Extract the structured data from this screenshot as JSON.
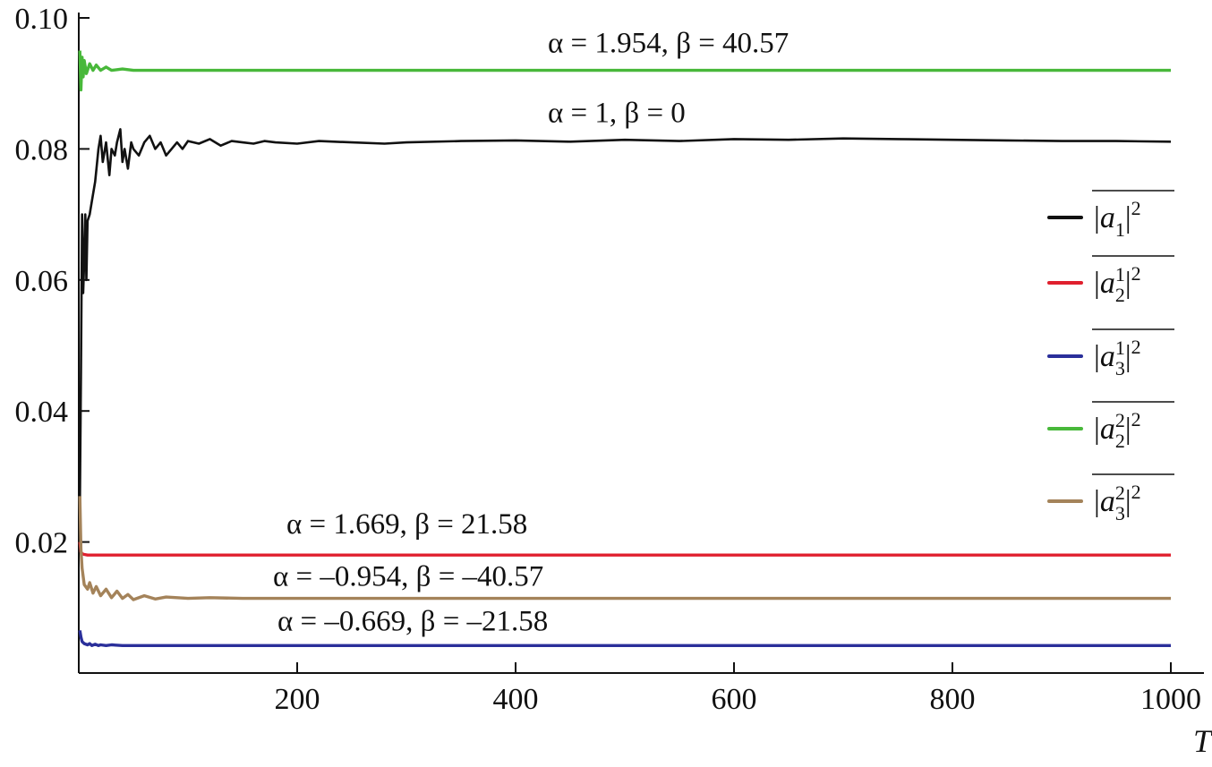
{
  "chart_data": {
    "type": "line",
    "title": "",
    "xlabel": "T",
    "ylabel": "",
    "xlim": [
      0,
      1020
    ],
    "ylim": [
      0,
      0.1
    ],
    "x_ticks": [
      200,
      400,
      600,
      800,
      1000
    ],
    "x_tick_labels": [
      "200",
      "400",
      "600",
      "800",
      "1000"
    ],
    "y_ticks": [
      0.02,
      0.04,
      0.06,
      0.08,
      0.1
    ],
    "y_tick_labels": [
      "0.02",
      "0.04",
      "0.06",
      "0.08",
      "0.10"
    ],
    "grid": false,
    "legend_position": "right",
    "series": [
      {
        "name": "|a1|^2",
        "legend_base": "|a",
        "legend_sub": "1",
        "legend_sup_inner": "",
        "legend_sup": "2",
        "color": "#111111",
        "annotation": "α = 1, β = 0",
        "x": [
          1,
          2,
          3,
          4,
          5,
          6,
          7,
          8,
          10,
          12,
          15,
          18,
          20,
          22,
          25,
          28,
          30,
          33,
          35,
          38,
          40,
          42,
          45,
          48,
          50,
          55,
          60,
          65,
          70,
          75,
          80,
          85,
          90,
          95,
          100,
          110,
          120,
          130,
          140,
          150,
          160,
          170,
          180,
          200,
          220,
          250,
          280,
          300,
          350,
          400,
          450,
          500,
          550,
          600,
          650,
          700,
          750,
          800,
          850,
          900,
          950,
          1000
        ],
        "y": [
          0.025,
          0.045,
          0.07,
          0.058,
          0.063,
          0.07,
          0.06,
          0.069,
          0.07,
          0.072,
          0.075,
          0.08,
          0.082,
          0.078,
          0.081,
          0.076,
          0.08,
          0.079,
          0.081,
          0.083,
          0.078,
          0.08,
          0.077,
          0.081,
          0.08,
          0.079,
          0.081,
          0.082,
          0.08,
          0.081,
          0.079,
          0.08,
          0.081,
          0.08,
          0.0812,
          0.0808,
          0.0815,
          0.0805,
          0.0812,
          0.081,
          0.0808,
          0.0812,
          0.081,
          0.0808,
          0.0812,
          0.081,
          0.0808,
          0.081,
          0.0812,
          0.0813,
          0.0811,
          0.0814,
          0.0812,
          0.0815,
          0.0814,
          0.0816,
          0.0815,
          0.0814,
          0.0813,
          0.0812,
          0.0812,
          0.0811
        ]
      },
      {
        "name": "|a2^1|^2",
        "legend_base": "|a",
        "legend_sub": "2",
        "legend_sup_inner": "1",
        "legend_sup": "2",
        "color": "#e0202e",
        "annotation": "α = 1.669, β = 21.58",
        "x": [
          1,
          2,
          3,
          5,
          8,
          12,
          20,
          50,
          100,
          200,
          400,
          600,
          800,
          1000
        ],
        "y": [
          0.02,
          0.0185,
          0.0182,
          0.0181,
          0.018,
          0.018,
          0.018,
          0.018,
          0.018,
          0.018,
          0.018,
          0.018,
          0.018,
          0.018
        ]
      },
      {
        "name": "|a3^1|^2",
        "legend_base": "|a",
        "legend_sub": "3",
        "legend_sup_inner": "1",
        "legend_sup": "2",
        "color": "#2a2f9a",
        "annotation": "α = –0.669, β = –21.58",
        "x": [
          1,
          2,
          3,
          5,
          8,
          10,
          12,
          15,
          18,
          20,
          25,
          30,
          40,
          50,
          70,
          100,
          200,
          400,
          600,
          800,
          1000
        ],
        "y": [
          0.0065,
          0.0055,
          0.0048,
          0.0045,
          0.0043,
          0.0045,
          0.0042,
          0.0044,
          0.0042,
          0.0043,
          0.0042,
          0.0043,
          0.0042,
          0.0042,
          0.0042,
          0.0042,
          0.0042,
          0.0042,
          0.0042,
          0.0042,
          0.0042
        ]
      },
      {
        "name": "|a2^2|^2",
        "legend_base": "|a",
        "legend_sub": "2",
        "legend_sup_inner": "2",
        "legend_sup": "2",
        "color": "#48b83a",
        "annotation": "α = 1.954, β = 40.57",
        "x": [
          1,
          2,
          3,
          4,
          5,
          7,
          10,
          13,
          16,
          20,
          25,
          30,
          40,
          50,
          70,
          100,
          200,
          400,
          600,
          800,
          1000
        ],
        "y": [
          0.095,
          0.089,
          0.094,
          0.091,
          0.0935,
          0.0915,
          0.093,
          0.092,
          0.0928,
          0.092,
          0.0925,
          0.092,
          0.0922,
          0.092,
          0.092,
          0.092,
          0.092,
          0.092,
          0.092,
          0.092,
          0.092
        ]
      },
      {
        "name": "|a3^2|^2",
        "legend_base": "|a",
        "legend_sub": "3",
        "legend_sup_inner": "2",
        "legend_sup": "2",
        "color": "#a4835a",
        "annotation": "α = –0.954, β = –40.57",
        "x": [
          1,
          2,
          3,
          5,
          8,
          10,
          13,
          16,
          20,
          25,
          30,
          35,
          40,
          45,
          50,
          60,
          70,
          80,
          100,
          120,
          150,
          200,
          300,
          400,
          600,
          800,
          1000
        ],
        "y": [
          0.027,
          0.019,
          0.016,
          0.0135,
          0.0128,
          0.0138,
          0.0122,
          0.0132,
          0.0118,
          0.0128,
          0.0115,
          0.0125,
          0.0114,
          0.012,
          0.0112,
          0.0118,
          0.0113,
          0.0116,
          0.0114,
          0.0115,
          0.0114,
          0.0114,
          0.0114,
          0.0114,
          0.0114,
          0.0114,
          0.0114
        ]
      }
    ]
  }
}
